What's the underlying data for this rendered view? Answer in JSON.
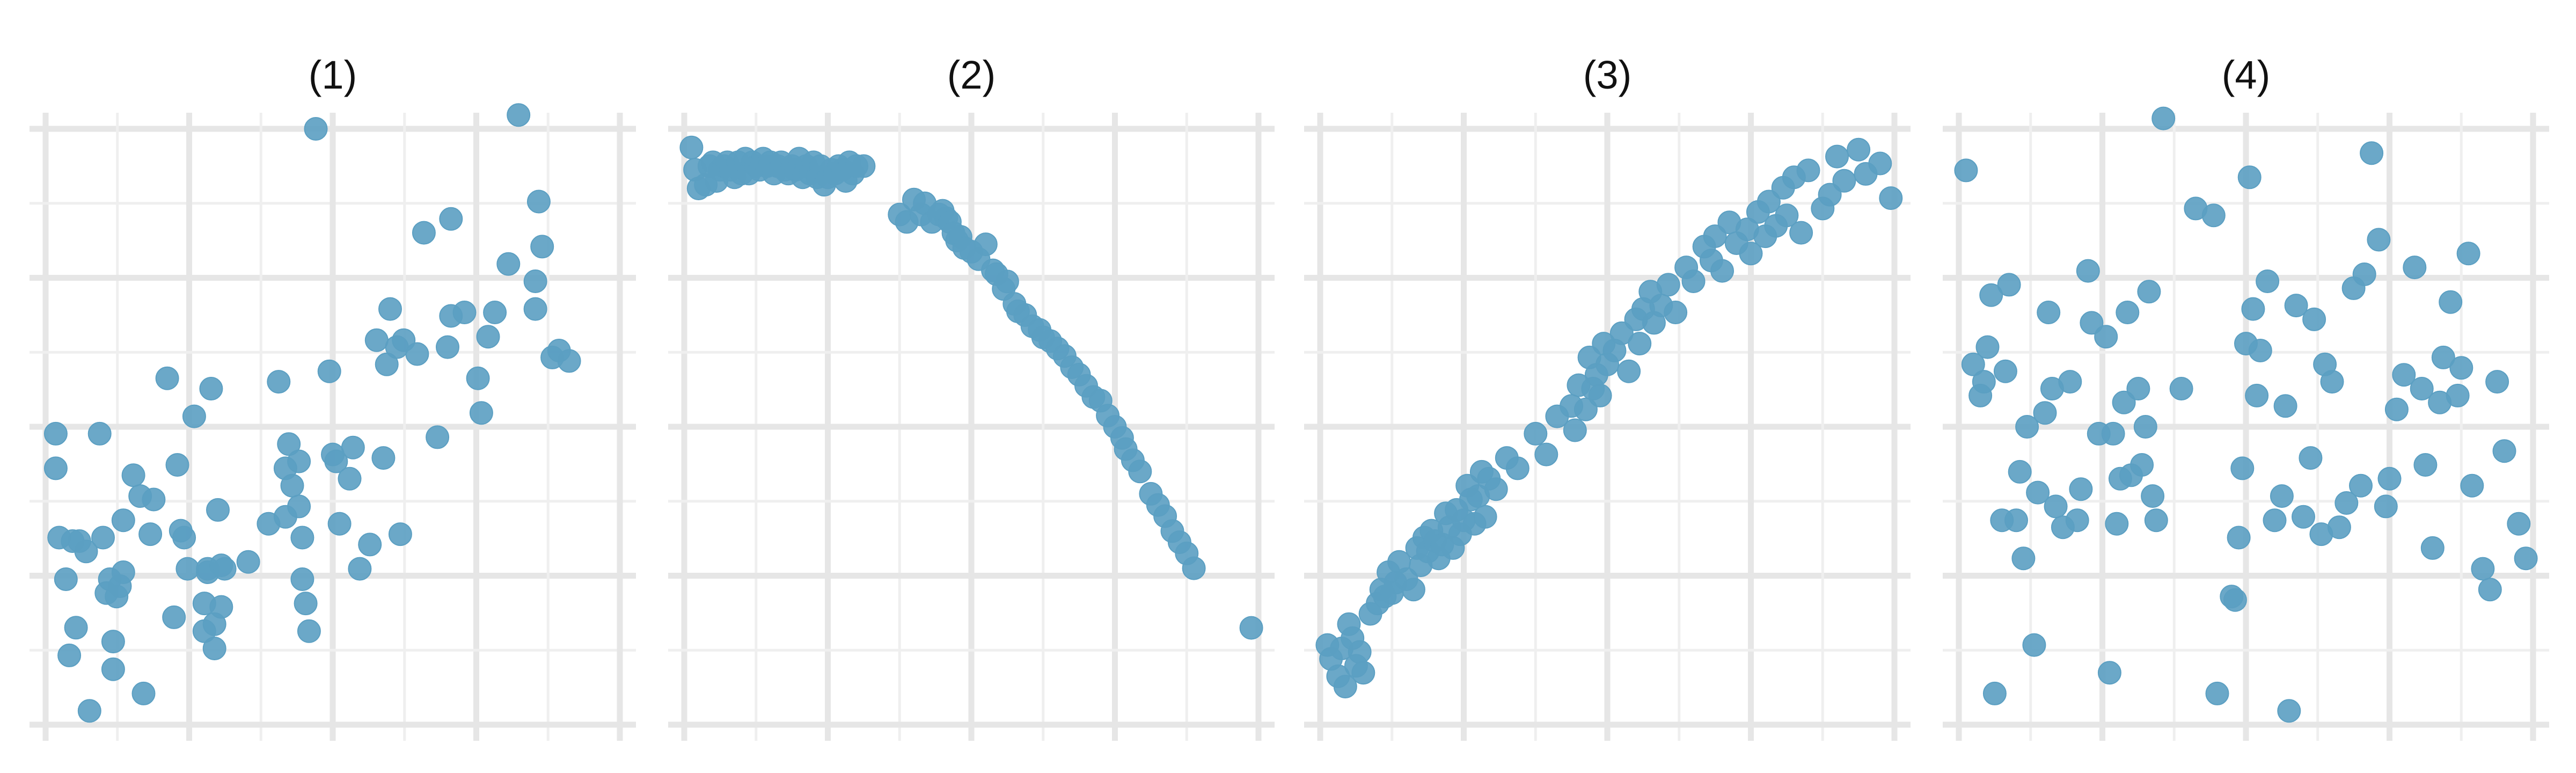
{
  "figure": {
    "point_color": "#5b9fc2",
    "grid_color": "#e6e6e6",
    "background": "#ffffff",
    "axis_ticks_shown": false
  },
  "chart_data": [
    {
      "type": "scatter",
      "title": "(1)",
      "xlim": [
        0,
        8.5
      ],
      "ylim": [
        0,
        8.6
      ],
      "grid": true,
      "x": [
        0.15,
        0.15,
        0.2,
        0.3,
        0.35,
        0.4,
        0.45,
        0.5,
        0.6,
        0.65,
        0.8,
        0.85,
        0.9,
        0.95,
        1.0,
        1.0,
        1.05,
        1.1,
        1.15,
        1.15,
        1.3,
        1.4,
        1.45,
        1.55,
        1.6,
        1.8,
        1.9,
        1.95,
        2.0,
        2.05,
        2.1,
        2.2,
        2.35,
        2.35,
        2.4,
        2.4,
        2.45,
        2.5,
        2.5,
        2.55,
        2.6,
        2.6,
        2.65,
        3.0,
        3.3,
        3.45,
        3.55,
        3.55,
        3.6,
        3.65,
        3.75,
        3.75,
        3.8,
        3.8,
        3.85,
        3.9,
        4.0,
        4.2,
        4.25,
        4.3,
        4.35,
        4.5,
        4.55,
        4.65,
        4.8,
        4.9,
        5.0,
        5.05,
        5.1,
        5.2,
        5.25,
        5.3,
        5.5,
        5.6,
        5.8,
        5.95,
        6.0,
        6.0,
        6.2,
        6.4,
        6.45,
        6.55,
        6.65,
        6.85,
        7.0,
        7.25,
        7.25,
        7.3,
        7.35,
        7.5,
        7.6,
        7.75
      ],
      "y": [
        4.2,
        3.7,
        2.7,
        2.1,
        1.0,
        2.65,
        1.4,
        2.65,
        2.5,
        0.2,
        4.2,
        2.7,
        1.9,
        2.1,
        0.8,
        1.2,
        1.85,
        2.0,
        2.95,
        2.2,
        3.6,
        3.3,
        0.45,
        2.75,
        3.25,
        5.0,
        1.55,
        3.75,
        2.8,
        2.7,
        2.25,
        4.45,
        1.35,
        1.75,
        2.2,
        2.25,
        4.85,
        1.45,
        1.1,
        3.1,
        1.7,
        2.3,
        2.25,
        2.35,
        2.9,
        4.95,
        3.0,
        3.7,
        4.05,
        3.45,
        3.8,
        3.15,
        2.7,
        2.1,
        1.75,
        1.35,
        8.6,
        5.1,
        3.9,
        3.8,
        2.9,
        3.55,
        4.0,
        2.25,
        2.6,
        5.55,
        3.85,
        5.2,
        6.0,
        5.45,
        2.75,
        5.55,
        5.35,
        7.1,
        4.15,
        5.45,
        7.3,
        5.9,
        5.95,
        5.0,
        4.5,
        5.6,
        5.95,
        6.65,
        8.8,
        6.4,
        6.0,
        7.55,
        6.9,
        5.3,
        5.4,
        5.25
      ]
    },
    {
      "type": "scatter",
      "title": "(2)",
      "xlim": [
        0,
        8
      ],
      "ylim": [
        0,
        8
      ],
      "grid": true,
      "x": [
        0.1,
        0.15,
        0.2,
        0.3,
        0.35,
        0.4,
        0.45,
        0.5,
        0.55,
        0.6,
        0.65,
        0.7,
        0.75,
        0.8,
        0.85,
        0.9,
        0.95,
        1.0,
        1.05,
        1.1,
        1.15,
        1.2,
        1.25,
        1.3,
        1.35,
        1.4,
        1.45,
        1.5,
        1.55,
        1.6,
        1.65,
        1.7,
        1.75,
        1.8,
        1.85,
        1.9,
        1.95,
        2.0,
        2.05,
        2.1,
        2.15,
        2.2,
        2.25,
        2.3,
        2.35,
        2.4,
        2.5,
        3.0,
        3.1,
        3.2,
        3.3,
        3.35,
        3.45,
        3.55,
        3.6,
        3.65,
        3.7,
        3.75,
        3.8,
        3.85,
        3.9,
        4.0,
        4.1,
        4.2,
        4.3,
        4.35,
        4.45,
        4.5,
        4.6,
        4.65,
        4.75,
        4.85,
        4.95,
        5.0,
        5.1,
        5.2,
        5.3,
        5.4,
        5.5,
        5.6,
        5.7,
        5.8,
        5.9,
        6.0,
        6.1,
        6.15,
        6.25,
        6.35,
        6.5,
        6.6,
        6.7,
        6.8,
        6.9,
        7.0,
        7.1,
        7.9
      ],
      "y": [
        7.75,
        7.45,
        7.2,
        7.25,
        7.5,
        7.55,
        7.3,
        7.45,
        7.5,
        7.55,
        7.45,
        7.35,
        7.55,
        7.4,
        7.6,
        7.4,
        7.55,
        7.5,
        7.45,
        7.6,
        7.5,
        7.55,
        7.4,
        7.5,
        7.55,
        7.45,
        7.4,
        7.5,
        7.45,
        7.6,
        7.35,
        7.5,
        7.4,
        7.55,
        7.35,
        7.5,
        7.25,
        7.35,
        7.45,
        7.4,
        7.5,
        7.45,
        7.3,
        7.55,
        7.4,
        7.5,
        7.5,
        6.85,
        6.75,
        7.05,
        6.85,
        7.0,
        6.75,
        6.85,
        6.9,
        6.8,
        6.75,
        6.6,
        6.5,
        6.55,
        6.4,
        6.35,
        6.25,
        6.45,
        6.1,
        6.05,
        5.85,
        5.95,
        5.65,
        5.55,
        5.5,
        5.35,
        5.3,
        5.2,
        5.15,
        5.05,
        4.95,
        4.8,
        4.7,
        4.55,
        4.4,
        4.35,
        4.15,
        4.0,
        3.85,
        3.7,
        3.55,
        3.4,
        3.1,
        2.95,
        2.8,
        2.6,
        2.45,
        2.3,
        2.1,
        1.3
      ]
    },
    {
      "type": "scatter",
      "title": "(3)",
      "xlim": [
        0,
        8
      ],
      "ylim": [
        0,
        8.6
      ],
      "grid": true,
      "x": [
        0.1,
        0.15,
        0.25,
        0.3,
        0.35,
        0.4,
        0.45,
        0.5,
        0.55,
        0.6,
        0.7,
        0.8,
        0.85,
        0.9,
        0.95,
        1.0,
        1.05,
        1.1,
        1.2,
        1.3,
        1.35,
        1.4,
        1.45,
        1.5,
        1.55,
        1.6,
        1.65,
        1.7,
        1.75,
        1.8,
        1.85,
        1.9,
        1.95,
        2.0,
        2.05,
        2.1,
        2.15,
        2.2,
        2.25,
        2.3,
        2.35,
        2.45,
        2.6,
        2.75,
        3.0,
        3.15,
        3.3,
        3.5,
        3.55,
        3.6,
        3.7,
        3.75,
        3.8,
        3.85,
        3.9,
        3.95,
        4.0,
        4.1,
        4.2,
        4.3,
        4.4,
        4.45,
        4.5,
        4.6,
        4.65,
        4.75,
        4.85,
        4.95,
        5.1,
        5.2,
        5.35,
        5.45,
        5.5,
        5.6,
        5.7,
        5.8,
        5.95,
        6.0,
        6.1,
        6.2,
        6.25,
        6.35,
        6.45,
        6.5,
        6.6,
        6.7,
        6.8,
        7.0,
        7.1,
        7.2,
        7.3,
        7.5,
        7.6,
        7.8,
        7.95
      ],
      "y": [
        1.15,
        0.95,
        0.7,
        1.1,
        0.55,
        1.45,
        1.25,
        0.85,
        1.05,
        0.75,
        1.6,
        1.75,
        1.95,
        1.85,
        2.2,
        1.9,
        2.05,
        2.35,
        2.1,
        1.95,
        2.55,
        2.3,
        2.7,
        2.5,
        2.8,
        2.65,
        2.4,
        2.6,
        3.05,
        2.85,
        2.55,
        3.1,
        2.75,
        2.95,
        3.45,
        3.25,
        2.9,
        3.3,
        3.65,
        3.0,
        3.55,
        3.4,
        3.85,
        3.7,
        4.2,
        3.9,
        4.45,
        4.6,
        4.25,
        4.9,
        4.55,
        5.3,
        4.85,
        5.05,
        4.75,
        5.5,
        5.2,
        5.4,
        5.65,
        5.1,
        5.85,
        5.5,
        6.0,
        6.25,
        5.8,
        6.05,
        6.35,
        5.95,
        6.6,
        6.4,
        6.9,
        6.7,
        7.05,
        6.55,
        7.25,
        6.95,
        7.15,
        6.8,
        7.4,
        7.05,
        7.55,
        7.2,
        7.75,
        7.35,
        7.9,
        7.1,
        8.0,
        7.45,
        7.65,
        8.2,
        7.85,
        8.3,
        7.95,
        8.1,
        7.6
      ]
    },
    {
      "type": "scatter",
      "title": "(4)",
      "xlim": [
        0,
        8
      ],
      "ylim": [
        0,
        8.6
      ],
      "grid": true,
      "x": [
        0.1,
        0.2,
        0.3,
        0.35,
        0.4,
        0.45,
        0.5,
        0.6,
        0.65,
        0.7,
        0.8,
        0.85,
        0.9,
        0.95,
        1.05,
        1.1,
        1.2,
        1.25,
        1.3,
        1.35,
        1.45,
        1.55,
        1.65,
        1.7,
        1.8,
        1.85,
        1.95,
        2.05,
        2.1,
        2.15,
        2.2,
        2.25,
        2.3,
        2.35,
        2.4,
        2.5,
        2.55,
        2.6,
        2.65,
        2.7,
        2.75,
        2.85,
        3.1,
        3.3,
        3.55,
        3.6,
        3.8,
        3.85,
        3.9,
        3.95,
        4.0,
        4.05,
        4.1,
        4.15,
        4.2,
        4.3,
        4.4,
        4.5,
        4.55,
        4.6,
        4.7,
        4.8,
        4.9,
        4.95,
        5.05,
        5.1,
        5.2,
        5.3,
        5.4,
        5.5,
        5.6,
        5.65,
        5.75,
        5.85,
        5.95,
        6.0,
        6.1,
        6.2,
        6.35,
        6.45,
        6.5,
        6.6,
        6.7,
        6.75,
        6.85,
        6.95,
        7.0,
        7.1,
        7.15,
        7.3,
        7.4,
        7.5,
        7.6,
        7.8,
        7.9
      ],
      "y": [
        8.0,
        5.2,
        4.75,
        4.95,
        5.45,
        6.2,
        0.45,
        2.95,
        5.1,
        6.35,
        2.95,
        3.65,
        2.4,
        4.3,
        1.15,
        3.35,
        4.5,
        5.95,
        4.85,
        3.15,
        2.85,
        4.95,
        2.95,
        3.4,
        6.55,
        5.8,
        4.2,
        5.6,
        0.75,
        4.2,
        2.9,
        3.55,
        4.65,
        5.95,
        3.6,
        4.85,
        3.75,
        4.3,
        6.25,
        3.3,
        2.95,
        8.75,
        4.85,
        7.45,
        7.35,
        0.45,
        1.85,
        1.8,
        2.7,
        3.7,
        5.5,
        7.9,
        6.0,
        4.75,
        5.4,
        6.4,
        2.95,
        3.3,
        4.6,
        0.2,
        6.05,
        3.0,
        3.85,
        5.85,
        2.75,
        5.2,
        4.95,
        2.85,
        3.2,
        6.3,
        3.45,
        6.5,
        8.25,
        7.0,
        3.15,
        3.55,
        4.55,
        5.05,
        6.6,
        4.85,
        3.75,
        2.55,
        4.65,
        5.3,
        6.1,
        4.75,
        5.15,
        6.8,
        3.45,
        2.25,
        1.95,
        4.95,
        3.95,
        2.9,
        2.4
      ]
    }
  ]
}
